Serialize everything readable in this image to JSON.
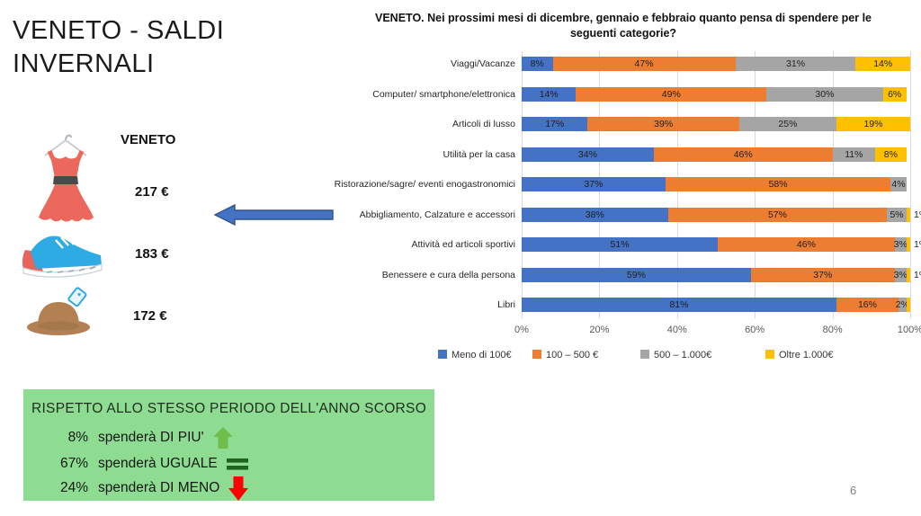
{
  "slide": {
    "title": "VENETO - SALDI INVERNALI",
    "page_number": "6"
  },
  "price_panel": {
    "header": "VENETO",
    "items": [
      {
        "icon": "dress-icon",
        "price": "217 €"
      },
      {
        "icon": "sneaker-icon",
        "price": "183 €"
      },
      {
        "icon": "hat-icon",
        "price": "172 €"
      }
    ]
  },
  "comparison_box": {
    "title": "RISPETTO ALLO STESSO PERIODO DELL'ANNO SCORSO",
    "items": [
      {
        "pct": "8%",
        "text": "spenderà DI PIU'",
        "icon": "up-arrow-icon",
        "color": "#6fbe4b"
      },
      {
        "pct": "67%",
        "text": "spenderà UGUALE",
        "icon": "equals-icon",
        "color": "#1e641e"
      },
      {
        "pct": "24%",
        "text": "spenderà DI MENO",
        "icon": "down-arrow-icon",
        "color": "#fe0000"
      }
    ]
  },
  "chart_data": {
    "type": "bar",
    "stacked": true,
    "orientation": "horizontal",
    "title": "VENETO. Nei prossimi mesi di dicembre, gennaio e febbraio quanto pensa di spendere per le seguenti categorie?",
    "categories": [
      "Viaggi/Vacanze",
      "Computer/ smartphone/elettronica",
      "Articoli di lusso",
      "Utilità per la casa",
      "Ristorazione/sagre/ eventi enogastronomici",
      "Abbigliamento, Calzature e accessori",
      "Attività ed articoli sportivi",
      "Benessere e cura della persona",
      "Libri"
    ],
    "series": [
      {
        "name": "Meno di 100€",
        "color": "#4472C4",
        "values": [
          8,
          14,
          17,
          34,
          37,
          38,
          51,
          59,
          81
        ]
      },
      {
        "name": "100 – 500 €",
        "color": "#ED7D31",
        "values": [
          47,
          49,
          39,
          46,
          58,
          57,
          46,
          37,
          16
        ]
      },
      {
        "name": "500 – 1.000€",
        "color": "#A5A5A5",
        "values": [
          31,
          30,
          25,
          11,
          4,
          5,
          3,
          3,
          2
        ]
      },
      {
        "name": "Oltre 1.000€",
        "color": "#FFC000",
        "values": [
          14,
          6,
          19,
          8,
          0,
          1,
          1,
          1,
          1
        ]
      }
    ],
    "outside_labels": [
      "",
      "",
      "",
      "",
      "",
      "1%",
      "1%",
      "1%",
      ""
    ],
    "x_ticks": [
      "0%",
      "20%",
      "40%",
      "60%",
      "80%",
      "100%"
    ],
    "xlim": [
      0,
      100
    ],
    "grid": true,
    "legend_position": "bottom",
    "min_value_for_inline_label": 2
  }
}
